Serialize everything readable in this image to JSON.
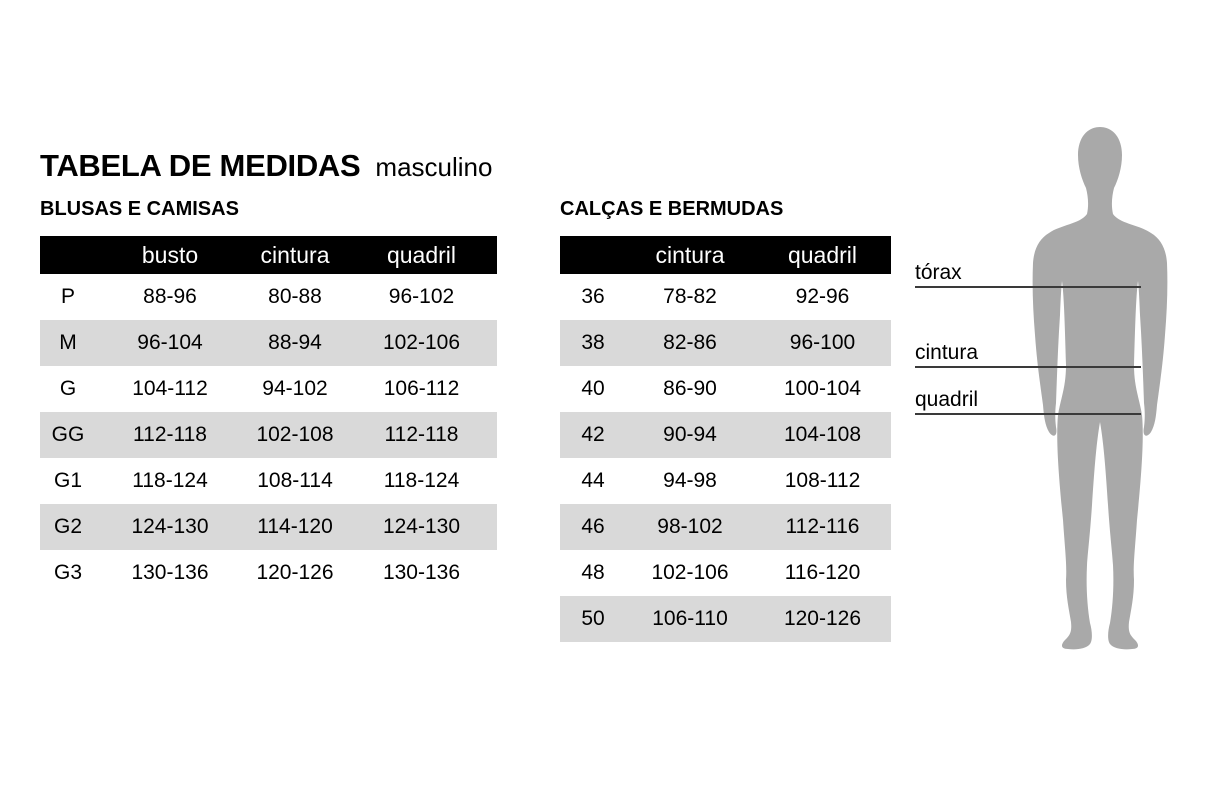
{
  "page": {
    "title": "TABELA DE MEDIDAS",
    "subtitle": "masculino"
  },
  "colors": {
    "header_bg": "#000000",
    "row_alt_bg": "#d9d9d9",
    "figure_gray": "#a9a9a9",
    "line_color": "#3a3a3a"
  },
  "tables": [
    {
      "section_title": "BLUSAS E CAMISAS",
      "columns": [
        "",
        "busto",
        "cintura",
        "quadril"
      ],
      "rows": [
        [
          "P",
          "88-96",
          "80-88",
          "96-102"
        ],
        [
          "M",
          "96-104",
          "88-94",
          "102-106"
        ],
        [
          "G",
          "104-112",
          "94-102",
          "106-112"
        ],
        [
          "GG",
          "112-118",
          "102-108",
          "112-118"
        ],
        [
          "G1",
          "118-124",
          "108-114",
          "118-124"
        ],
        [
          "G2",
          "124-130",
          "114-120",
          "124-130"
        ],
        [
          "G3",
          "130-136",
          "120-126",
          "130-136"
        ]
      ]
    },
    {
      "section_title": "CALÇAS E BERMUDAS",
      "columns": [
        "",
        "cintura",
        "quadril"
      ],
      "rows": [
        [
          "36",
          "78-82",
          "92-96"
        ],
        [
          "38",
          "82-86",
          "96-100"
        ],
        [
          "40",
          "86-90",
          "100-104"
        ],
        [
          "42",
          "90-94",
          "104-108"
        ],
        [
          "44",
          "94-98",
          "108-112"
        ],
        [
          "46",
          "98-102",
          "112-116"
        ],
        [
          "48",
          "102-106",
          "116-120"
        ],
        [
          "50",
          "106-110",
          "120-126"
        ]
      ]
    }
  ],
  "figure": {
    "labels": [
      {
        "text": "tórax"
      },
      {
        "text": "cintura"
      },
      {
        "text": "quadril"
      }
    ]
  }
}
